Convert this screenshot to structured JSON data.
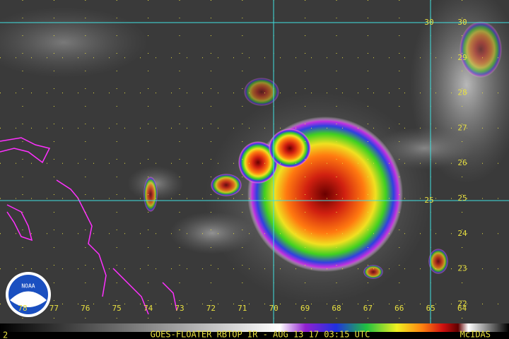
{
  "logo": "NOAA",
  "grid_labels": [
    "30",
    "25"
  ],
  "lon_labels": [
    "78",
    "77",
    "76",
    "75",
    "74",
    "73",
    "72",
    "71",
    "70",
    "69",
    "68",
    "67",
    "66",
    "65",
    "64"
  ],
  "lat_labels": [
    "30",
    "29",
    "28",
    "27",
    "26",
    "25",
    "24",
    "23",
    "22"
  ],
  "footer": {
    "frame": "2",
    "caption": "GOES-FLOATER RBTOP IR - AUG 13 17 03:15 UTC",
    "software": "McIDAS"
  }
}
